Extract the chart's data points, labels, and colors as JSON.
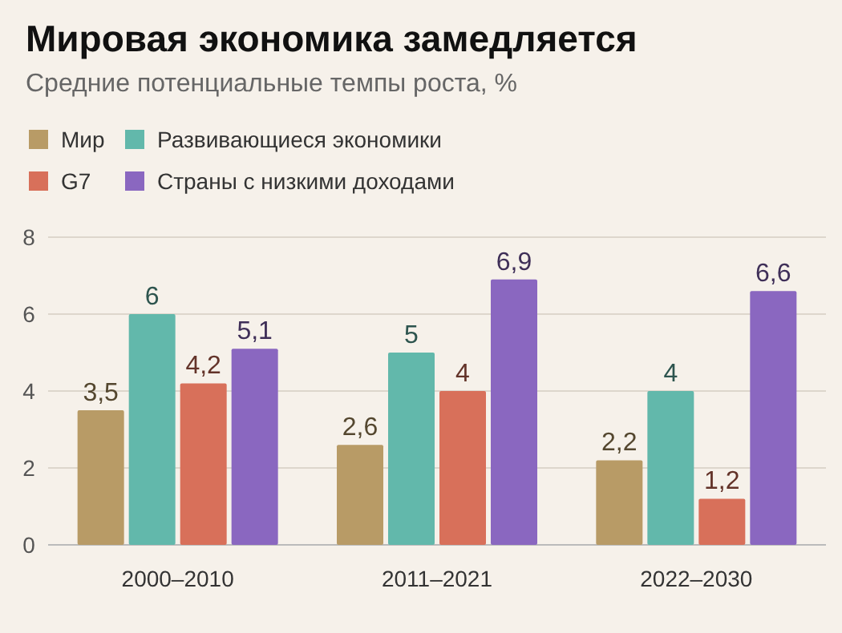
{
  "chart_data": {
    "type": "bar",
    "title": "Мировая экономика замедляется",
    "subtitle": "Средние потенциальные темпы роста, %",
    "categories": [
      "2000–2010",
      "2011–2021",
      "2022–2030"
    ],
    "series": [
      {
        "name": "Мир",
        "color": "#b89b66",
        "values": [
          3.5,
          2.6,
          2.2
        ],
        "value_labels": [
          "3,5",
          "2,6",
          "2,2"
        ]
      },
      {
        "name": "Развивающиеся экономики",
        "color": "#62b8ab",
        "values": [
          6,
          5,
          4
        ],
        "value_labels": [
          "6",
          "5",
          "4"
        ]
      },
      {
        "name": "G7",
        "color": "#d8705a",
        "values": [
          4.2,
          4,
          1.2
        ],
        "value_labels": [
          "4,2",
          "4",
          "1,2"
        ]
      },
      {
        "name": "Страны с низкими доходами",
        "color": "#8a67c0",
        "values": [
          5.1,
          6.9,
          6.6
        ],
        "value_labels": [
          "5,1",
          "6,9",
          "6,6"
        ]
      }
    ],
    "ylim": [
      0,
      8
    ],
    "yticks": [
      0,
      2,
      4,
      6,
      8
    ],
    "grid": "y",
    "legend": "top left"
  }
}
